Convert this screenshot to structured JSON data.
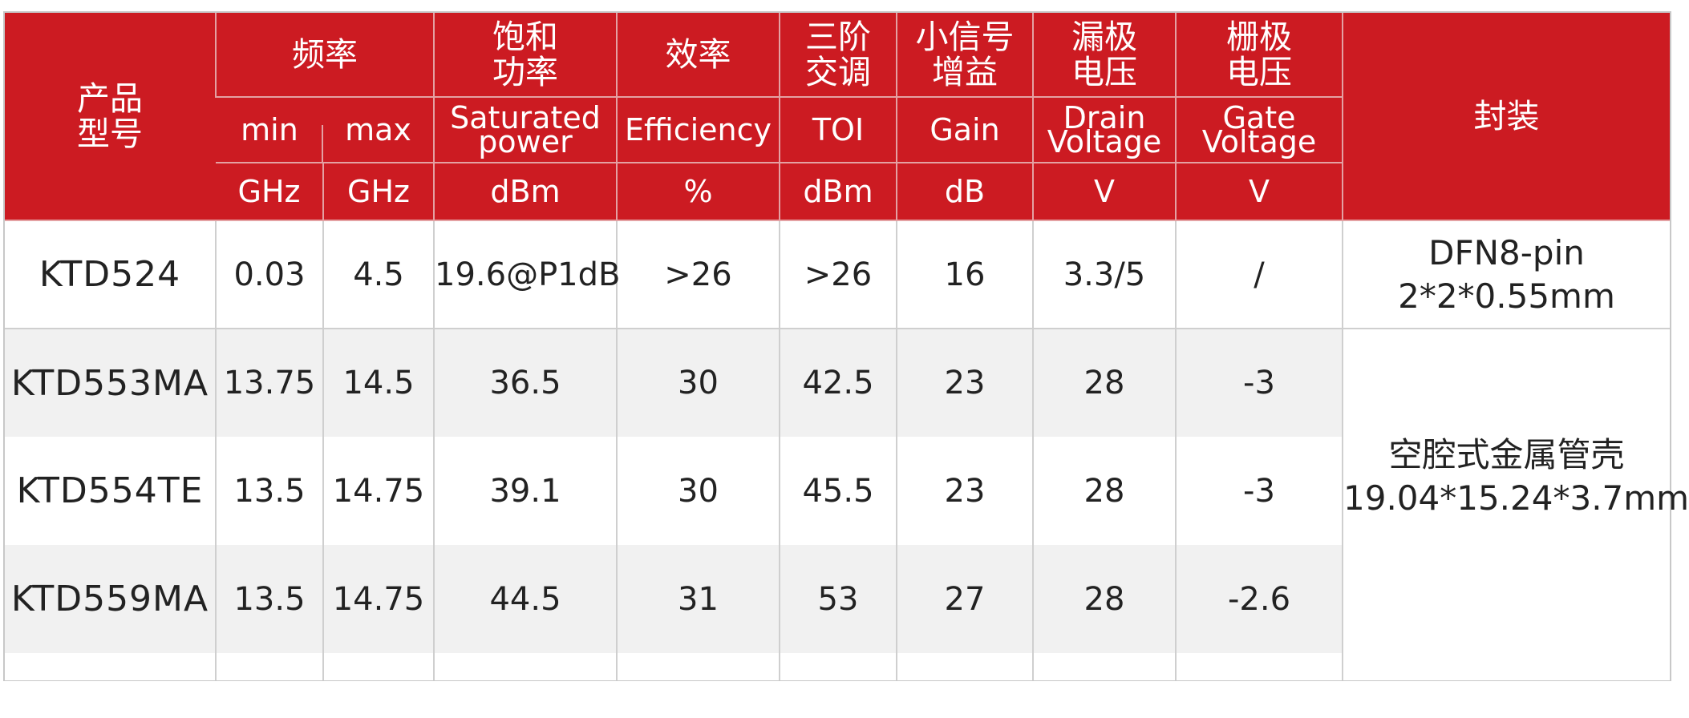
{
  "header": {
    "model": "产品\n型号",
    "frequency": "频率",
    "sat_power": "饱和\n功率",
    "efficiency": "效率",
    "toi": "三阶\n交调",
    "gain": "小信号\n增益",
    "drain": "漏极\n电压",
    "gate": "栅极\n电压",
    "package": "封装",
    "sub": {
      "min": "min",
      "max": "max",
      "sat_power": "Saturated\npower",
      "efficiency": "Efficiency",
      "toi": "TOI",
      "gain": "Gain",
      "drain": "Drain\nVoltage",
      "gate": "Gate\nVoltage"
    },
    "units": {
      "min": "GHz",
      "max": "GHz",
      "sat_power": "dBm",
      "efficiency": "%",
      "toi": "dBm",
      "gain": "dB",
      "drain": "V",
      "gate": "V"
    }
  },
  "rows": [
    {
      "model": "KTD524",
      "min": "0.03",
      "max": "4.5",
      "sat_power": "19.6@P1dB",
      "efficiency": ">26",
      "toi": ">26",
      "gain": "16",
      "drain": "3.3/5",
      "gate": "/",
      "package": "DFN8-pin\n2*2*0.55mm"
    },
    {
      "model": "KTD553MA",
      "min": "13.75",
      "max": "14.5",
      "sat_power": "36.5",
      "efficiency": "30",
      "toi": "42.5",
      "gain": "23",
      "drain": "28",
      "gate": "-3"
    },
    {
      "model": "KTD554TE",
      "min": "13.5",
      "max": "14.75",
      "sat_power": "39.1",
      "efficiency": "30",
      "toi": "45.5",
      "gain": "23",
      "drain": "28",
      "gate": "-3"
    },
    {
      "model": "KTD559MA",
      "min": "13.5",
      "max": "14.75",
      "sat_power": "44.5",
      "efficiency": "31",
      "toi": "53",
      "gain": "27",
      "drain": "28",
      "gate": "-2.6"
    }
  ],
  "shared_package": "空腔式金属管壳\n19.04*15.24*3.7mm",
  "colors": {
    "header_bg": "#cc1b22",
    "header_text": "#ffffff",
    "alt_row": "#f1f1f1"
  }
}
